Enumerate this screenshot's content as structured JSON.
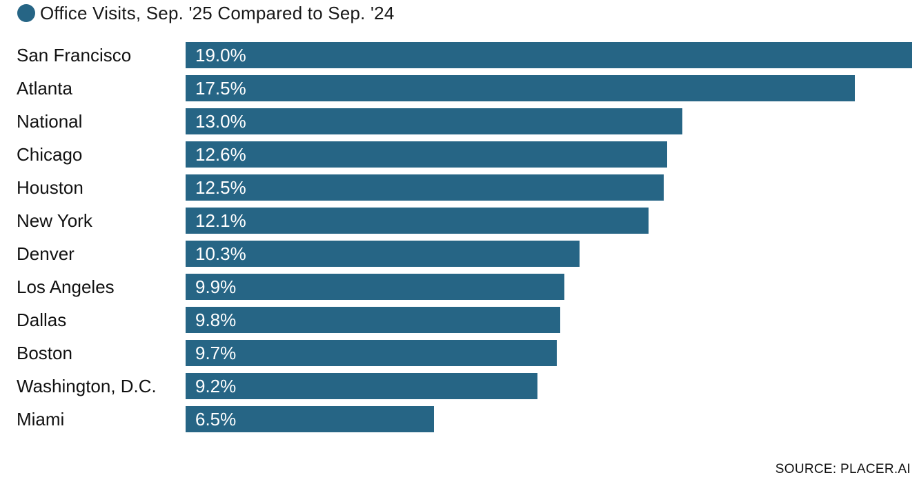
{
  "accent_color": "#266585",
  "text_color": "#111111",
  "background_color": "#ffffff",
  "footer": {
    "source": "SOURCE: PLACER.AI"
  },
  "chart_data": {
    "type": "bar",
    "orientation": "horizontal",
    "title": "Office Visits, Sep. '25 Compared to Sep. '24",
    "legend": [
      {
        "label": "Office Visits, Sep. '25 Compared to Sep. '24",
        "marker": "circle",
        "color": "#266585"
      }
    ],
    "categories": [
      "San Francisco",
      "Atlanta",
      "National",
      "Chicago",
      "Houston",
      "New York",
      "Denver",
      "Los Angeles",
      "Dallas",
      "Boston",
      "Washington, D.C.",
      "Miami"
    ],
    "values": [
      19.0,
      17.5,
      13.0,
      12.6,
      12.5,
      12.1,
      10.3,
      9.9,
      9.8,
      9.7,
      9.2,
      6.5
    ],
    "value_labels": [
      "19.0%",
      "17.5%",
      "13.0%",
      "12.6%",
      "12.5%",
      "12.1%",
      "10.3%",
      "9.9%",
      "9.8%",
      "9.7%",
      "9.2%",
      "6.5%"
    ],
    "xlabel": "",
    "ylabel": "",
    "xlim": [
      0,
      19.0
    ],
    "grid": false,
    "bar_color": "#266585",
    "value_label_position": "inside-left",
    "source": "SOURCE: PLACER.AI"
  }
}
